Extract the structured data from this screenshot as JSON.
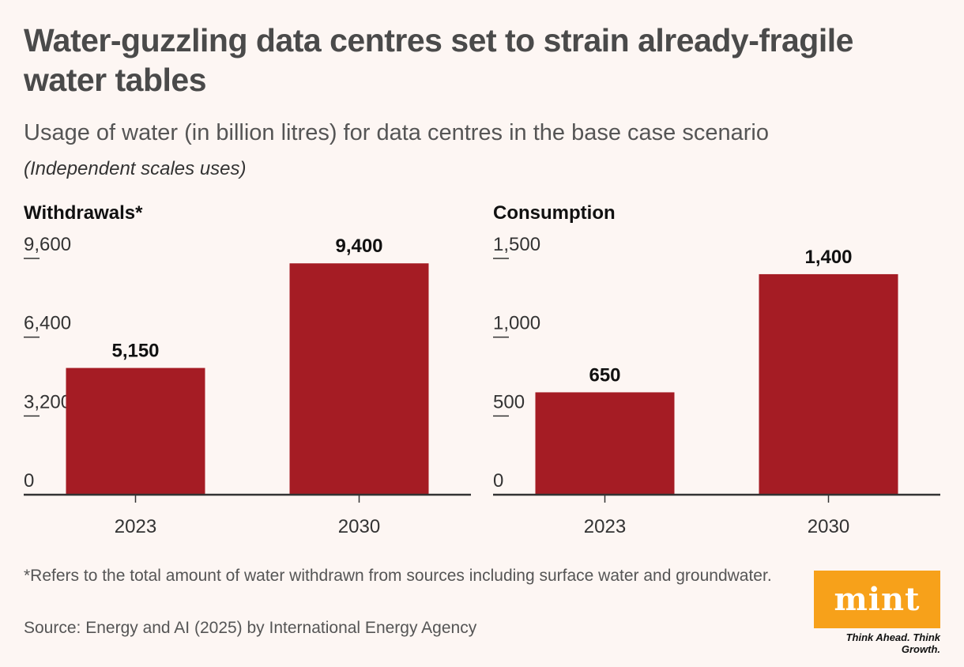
{
  "header": {
    "title": "Water-guzzling data centres set to strain already-fragile water tables",
    "subtitle": "Usage of water (in billion litres) for data centres in the base case scenario",
    "note": "(Independent scales uses)"
  },
  "colors": {
    "bar": "#a51c24",
    "background": "#fdf6f3",
    "logo": "#f7a11a"
  },
  "chart_data": [
    {
      "type": "bar",
      "title": "Withdrawals*",
      "categories": [
        "2023",
        "2030"
      ],
      "values": [
        5150,
        9400
      ],
      "value_labels": [
        "5,150",
        "9,400"
      ],
      "yticks": [
        0,
        3200,
        6400,
        9600
      ],
      "ytick_labels": [
        "0",
        "3,200",
        "6,400",
        "9,600"
      ],
      "ylim": [
        0,
        9600
      ],
      "xlabel": "",
      "ylabel": ""
    },
    {
      "type": "bar",
      "title": "Consumption",
      "categories": [
        "2023",
        "2030"
      ],
      "values": [
        650,
        1400
      ],
      "value_labels": [
        "650",
        "1,400"
      ],
      "yticks": [
        0,
        500,
        1000,
        1500
      ],
      "ytick_labels": [
        "0",
        "500",
        "1,000",
        "1,500"
      ],
      "ylim": [
        0,
        1500
      ],
      "xlabel": "",
      "ylabel": ""
    }
  ],
  "footer": {
    "footnote": "*Refers to the total amount of water withdrawn from sources including surface water and groundwater.",
    "source": "Source: Energy and AI (2025) by International Energy Agency"
  },
  "logo": {
    "text": "mint",
    "tagline": "Think Ahead. Think Growth."
  }
}
